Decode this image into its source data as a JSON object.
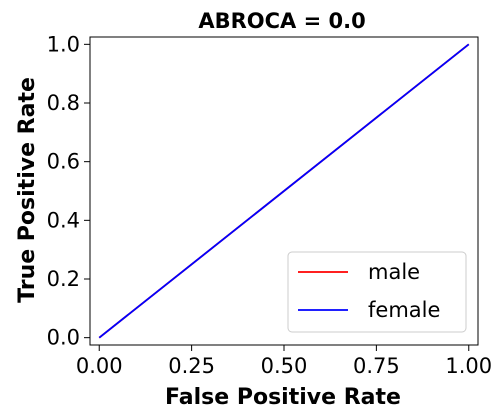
{
  "chart_data": {
    "type": "line",
    "title": "ABROCA = 0.0",
    "xlabel": "False Positive Rate",
    "ylabel": "True Positive Rate",
    "xlim": [
      -0.025,
      1.025
    ],
    "ylim": [
      -0.025,
      1.025
    ],
    "x_ticks": [
      0.0,
      0.25,
      0.5,
      0.75,
      1.0
    ],
    "x_tick_labels": [
      "0.00",
      "0.25",
      "0.50",
      "0.75",
      "1.00"
    ],
    "y_ticks": [
      0.0,
      0.2,
      0.4,
      0.6,
      0.8,
      1.0
    ],
    "y_tick_labels": [
      "0.0",
      "0.2",
      "0.4",
      "0.6",
      "0.8",
      "1.0"
    ],
    "grid": false,
    "legend_position": "bottom-right",
    "series": [
      {
        "name": "male",
        "color": "#ff0000",
        "x": [
          0.0,
          1.0
        ],
        "y": [
          0.0,
          1.0
        ]
      },
      {
        "name": "female",
        "color": "#0000ff",
        "x": [
          0.0,
          1.0
        ],
        "y": [
          0.0,
          1.0
        ]
      }
    ]
  }
}
